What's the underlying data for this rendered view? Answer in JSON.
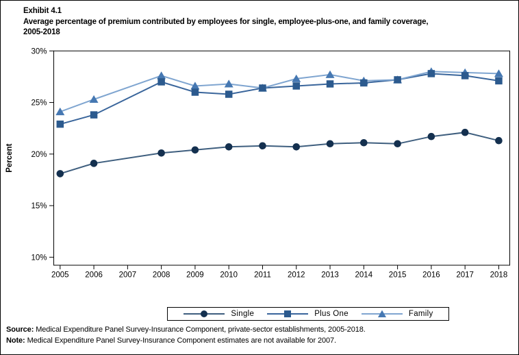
{
  "header": {
    "exhibit": "Exhibit 4.1",
    "title_line1": "Average percentage of premium contributed by employees for single, employee-plus-one, and family coverage,",
    "title_line2": "2005-2018"
  },
  "chart_data": {
    "type": "line",
    "title": "Average percentage of premium contributed by employees for single, employee-plus-one, and family coverage, 2005-2018",
    "x": [
      2005,
      2006,
      2007,
      2008,
      2009,
      2010,
      2011,
      2012,
      2013,
      2014,
      2015,
      2016,
      2017,
      2018
    ],
    "series": [
      {
        "name": "Single",
        "marker": "circle",
        "marker_color": "#14304F",
        "line_color": "#3E5E7E",
        "values": [
          18.1,
          19.1,
          null,
          20.1,
          20.4,
          20.7,
          20.8,
          20.7,
          21.0,
          21.1,
          21.0,
          21.7,
          22.1,
          21.3
        ]
      },
      {
        "name": "Plus One",
        "marker": "square",
        "marker_color": "#2C5A8E",
        "line_color": "#39659B",
        "values": [
          22.9,
          23.8,
          null,
          27.0,
          26.0,
          25.8,
          26.4,
          26.6,
          26.8,
          26.9,
          27.2,
          27.8,
          27.6,
          27.1
        ]
      },
      {
        "name": "Family",
        "marker": "triangle",
        "marker_color": "#4678B2",
        "line_color": "#7FA5D0",
        "values": [
          24.1,
          25.3,
          null,
          27.6,
          26.6,
          26.8,
          26.4,
          27.3,
          27.7,
          27.1,
          27.2,
          28.0,
          27.9,
          27.8
        ]
      }
    ],
    "ylabel": "Percent",
    "xlabel": "",
    "ylim": [
      10,
      30
    ],
    "yticks": [
      10,
      15,
      20,
      25,
      30
    ],
    "ytick_suffix": "%",
    "grid": false,
    "legend_position": "bottom",
    "axis_color": "#000000"
  },
  "footer": {
    "source_label": "Source:",
    "source_text": " Medical Expenditure Panel Survey-Insurance Component, private-sector establishments, 2005-2018.",
    "note_label": "Note:",
    "note_text": " Medical Expenditure Panel Survey-Insurance Component estimates are not available for 2007."
  }
}
